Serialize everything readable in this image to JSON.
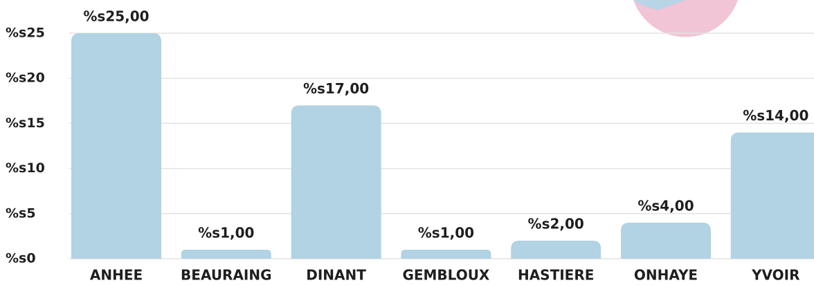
{
  "chart_data": {
    "type": "bar",
    "categories": [
      "ANHEE",
      "BEAURAING",
      "DINANT",
      "GEMBLOUX",
      "HASTIERE",
      "ONHAYE",
      "YVOIR"
    ],
    "values": [
      25,
      1,
      17,
      1,
      2,
      4,
      14
    ],
    "value_labels": [
      "%s25,00",
      "%s1,00",
      "%s17,00",
      "%s1,00",
      "%s2,00",
      "%s4,00",
      "%s14,00"
    ],
    "color": "#b1d3e3",
    "ylim": [
      0,
      25
    ],
    "yticks": [
      {
        "value": 0,
        "label": "%s0"
      },
      {
        "value": 5,
        "label": "%s5"
      },
      {
        "value": 10,
        "label": "%s10"
      },
      {
        "value": 15,
        "label": "%s15"
      },
      {
        "value": 20,
        "label": "%s20"
      },
      {
        "value": 25,
        "label": "%s25"
      }
    ],
    "grid": true
  }
}
